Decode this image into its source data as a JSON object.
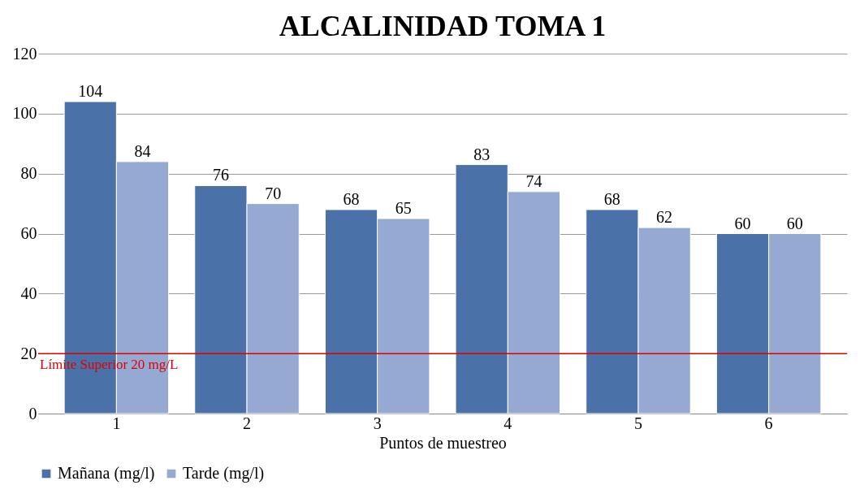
{
  "chart_data": {
    "type": "bar",
    "title": "ALCALINIDAD TOMA 1",
    "xlabel": "Puntos de muestreo",
    "categories": [
      "1",
      "2",
      "3",
      "4",
      "5",
      "6"
    ],
    "series": [
      {
        "name": "Mañana (mg/l)",
        "color": "#4a72a8",
        "values": [
          104,
          76,
          68,
          83,
          68,
          60
        ]
      },
      {
        "name": "Tarde (mg/l)",
        "color": "#95a9d2",
        "values": [
          84,
          70,
          65,
          74,
          62,
          60
        ]
      }
    ],
    "ylim": [
      0,
      120
    ],
    "yticks": [
      0,
      20,
      40,
      60,
      80,
      100,
      120
    ],
    "grid": "y",
    "legend": "bottom",
    "data_labels": true,
    "ref_lines": [
      {
        "axis": "y",
        "value": 20,
        "label": "Límite Superior 20 mg/L",
        "color": "#e00000"
      }
    ]
  }
}
